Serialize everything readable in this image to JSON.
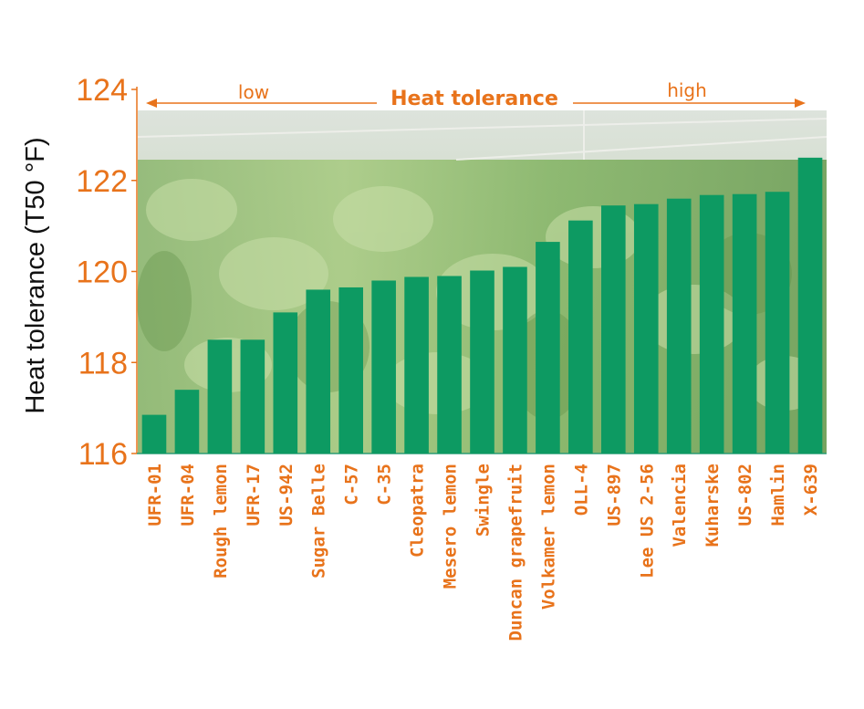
{
  "chart_data": {
    "type": "bar",
    "title": "",
    "xlabel": "",
    "ylabel": "Heat tolerance (T50 °F)",
    "ylim": [
      116,
      124
    ],
    "yticks": [
      116,
      118,
      120,
      122,
      124
    ],
    "grid": false,
    "bar_color": "#0d9a62",
    "axis_color": "#e8731b",
    "annotation": {
      "center_label": "Heat tolerance",
      "low_label": "low",
      "high_label": "high"
    },
    "categories": [
      "UFR-01",
      "UFR-04",
      "Rough lemon",
      "UFR-17",
      "US-942",
      "Sugar Belle",
      "C-57",
      "C-35",
      "Cleopatra",
      "Mesero lemon",
      "Swingle",
      "Duncan grapefruit",
      "Volkamer lemon",
      "OLL-4",
      "US-897",
      "Lee US 2-56",
      "Valencia",
      "Kuharske",
      "US-802",
      "Hamlin",
      "X-639"
    ],
    "values": [
      116.85,
      117.4,
      118.5,
      118.5,
      119.1,
      119.6,
      119.65,
      119.8,
      119.88,
      119.9,
      120.02,
      120.1,
      120.65,
      121.12,
      121.45,
      121.48,
      121.6,
      121.68,
      121.7,
      121.75,
      122.5
    ]
  }
}
